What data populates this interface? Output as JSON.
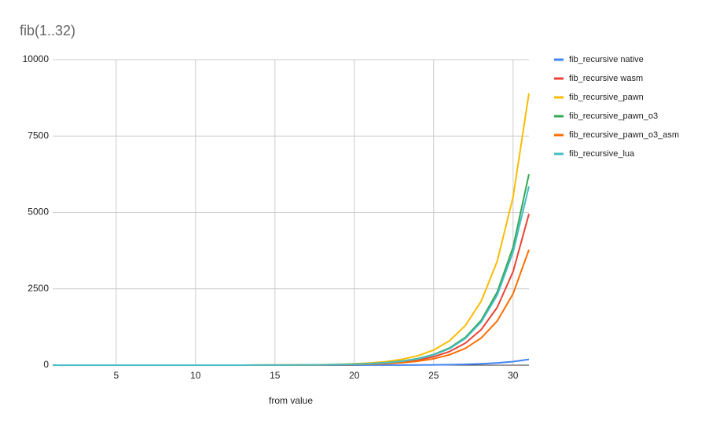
{
  "chart_data": {
    "type": "line",
    "title": "fib(1..32)",
    "x_label": "from value",
    "x": [
      1,
      2,
      3,
      4,
      5,
      6,
      7,
      8,
      9,
      10,
      11,
      12,
      13,
      14,
      15,
      16,
      17,
      18,
      19,
      20,
      21,
      22,
      23,
      24,
      25,
      26,
      27,
      28,
      29,
      30,
      31
    ],
    "xlim": [
      1,
      31
    ],
    "xticks": [
      5,
      10,
      15,
      20,
      25,
      30
    ],
    "ylim": [
      0,
      10000
    ],
    "yticks": [
      0,
      2500,
      5000,
      7500,
      10000
    ],
    "grid": true,
    "legend": "right",
    "series": [
      {
        "name": "fib_recursive native",
        "color": "#4285f4",
        "values": [
          0,
          0,
          0,
          0,
          0,
          0,
          0,
          0,
          0,
          0,
          0,
          0,
          0,
          0,
          0,
          0,
          0,
          0,
          0,
          1,
          2,
          3,
          4,
          7,
          11,
          17,
          28,
          45,
          73,
          117,
          190
        ]
      },
      {
        "name": "fib_recursive wasm",
        "color": "#ea4335",
        "values": [
          0,
          0,
          0,
          0,
          0,
          0,
          0,
          0,
          0,
          0,
          0,
          0,
          1,
          1,
          2,
          4,
          6,
          10,
          15,
          25,
          40,
          65,
          105,
          170,
          276,
          446,
          722,
          1170,
          1890,
          3060,
          4950
        ]
      },
      {
        "name": "fib_recursive_pawn",
        "color": "#fbbc04",
        "values": [
          0,
          0,
          0,
          0,
          0,
          0,
          0,
          0,
          0,
          0,
          0,
          1,
          1,
          2,
          4,
          6,
          10,
          17,
          28,
          45,
          72,
          117,
          190,
          307,
          496,
          800,
          1300,
          2100,
          3400,
          5500,
          8900
        ]
      },
      {
        "name": "fib_recursive_pawn_o3",
        "color": "#34a853",
        "values": [
          0,
          0,
          0,
          0,
          0,
          0,
          0,
          0,
          0,
          0,
          0,
          0,
          1,
          2,
          3,
          5,
          7,
          12,
          19,
          31,
          51,
          82,
          133,
          215,
          348,
          563,
          912,
          1475,
          2390,
          3860,
          6250
        ]
      },
      {
        "name": "fib_recursive_pawn_o3_asm",
        "color": "#ff6d01",
        "values": [
          0,
          0,
          0,
          0,
          0,
          0,
          0,
          0,
          0,
          0,
          0,
          0,
          0,
          1,
          2,
          3,
          4,
          7,
          12,
          19,
          31,
          50,
          80,
          130,
          210,
          341,
          551,
          892,
          1443,
          2335,
          3780
        ]
      },
      {
        "name": "fib_recursive_lua",
        "color": "#46bdc6",
        "values": [
          0,
          0,
          0,
          0,
          0,
          0,
          0,
          0,
          0,
          0,
          0,
          0,
          1,
          2,
          3,
          4,
          7,
          11,
          19,
          30,
          49,
          79,
          127,
          206,
          334,
          540,
          875,
          1415,
          2290,
          3700,
          5850
        ]
      }
    ]
  }
}
